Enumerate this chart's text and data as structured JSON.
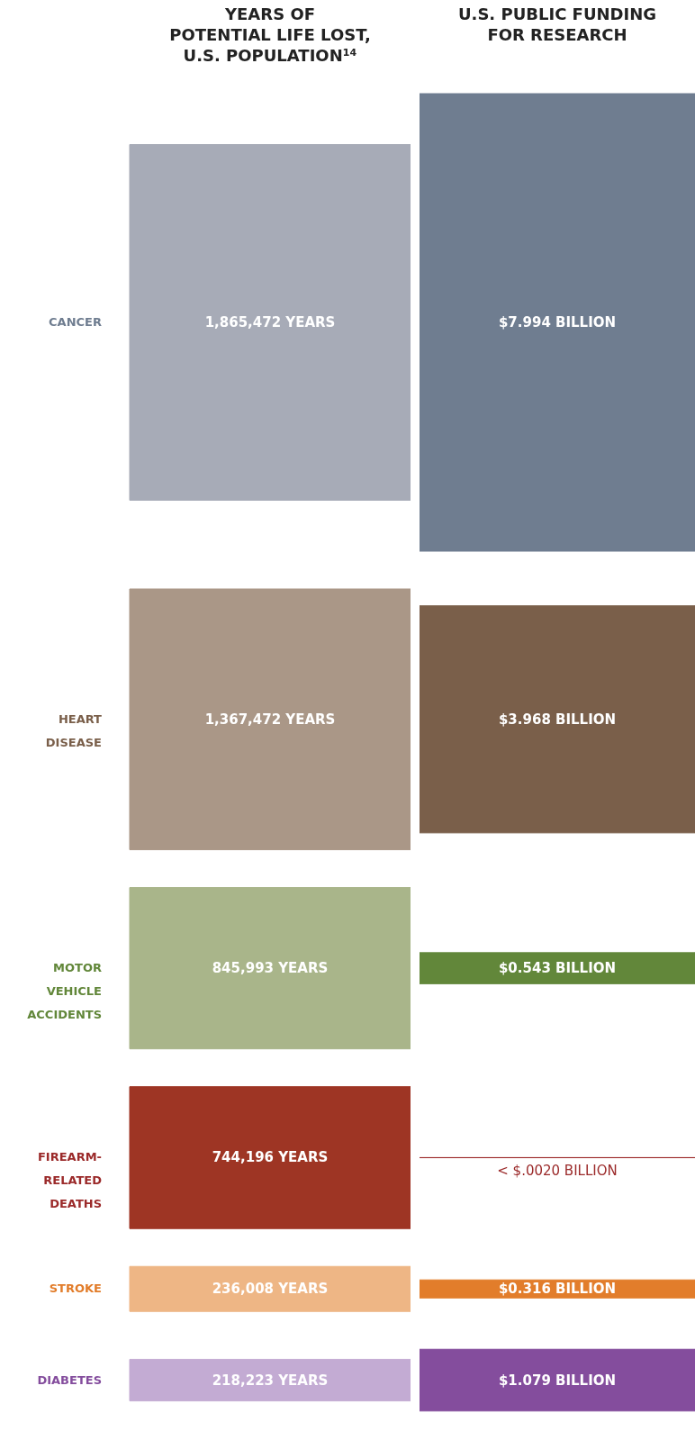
{
  "chart_data": [
    {
      "type": "other",
      "title": "YEARS OF\nPOTENTIAL LIFE LOST,\nU.S. POPULATION¹⁴",
      "categories": [
        "CANCER",
        "HEART\nDISEASE",
        "MOTOR\nVEHICLE\nACCIDENTS",
        "FIREARM-\nRELATED\nDEATHS",
        "STROKE",
        "DIABETES"
      ],
      "values": [
        1865472,
        1367472,
        845993,
        744196,
        236008,
        218223
      ],
      "value_labels": [
        "1,865,472 YEARS",
        "1,367,472 YEARS",
        "845,993 YEARS",
        "744,196 YEARS",
        "236,008 YEARS",
        "218,223 YEARS"
      ],
      "colors": [
        "#a7abb7",
        "#aa9787",
        "#a9b58a",
        "#9e3524",
        "#eeb685",
        "#c3abd3"
      ]
    },
    {
      "type": "other",
      "title": "U.S. PUBLIC FUNDING\nFOR RESEARCH",
      "values": [
        7.994,
        3.968,
        0.543,
        0.002,
        0.316,
        1.079
      ],
      "value_labels": [
        "$7.994 BILLION",
        "$3.968 BILLION",
        "$0.543 BILLION",
        "< $.0020 BILLION",
        "$0.316 BILLION",
        "$1.079 BILLION"
      ],
      "colors": [
        "#6f7d90",
        "#7a5f4a",
        "#62873a",
        "#9b2a2a",
        "#e27d2b",
        "#844d9d"
      ]
    }
  ]
}
